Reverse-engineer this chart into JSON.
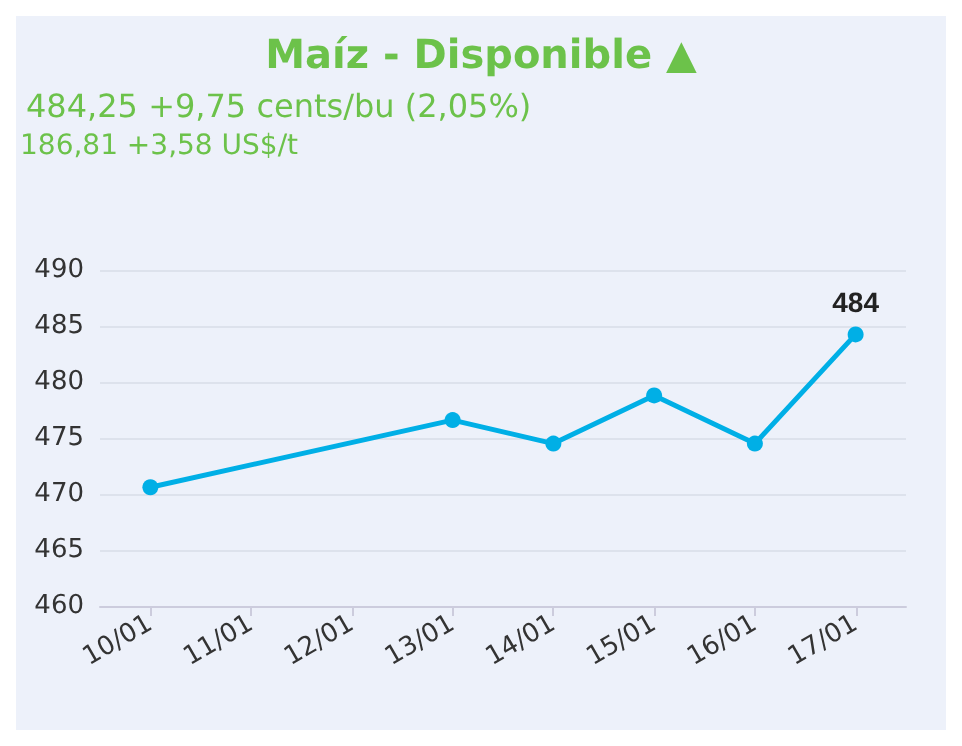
{
  "chart_data": {
    "type": "line",
    "title": "Maíz - Disponible ▲",
    "subtitle": "484,25 +9,75 cents/bu (2,05%)",
    "annotations": [
      "186,81 +3,58 US$/t"
    ],
    "categories": [
      "10/01",
      "11/01",
      "12/01",
      "13/01",
      "14/01",
      "15/01",
      "16/01",
      "17/01"
    ],
    "series": [
      {
        "color": "#00afe6",
        "values": [
          470.6,
          null,
          null,
          476.6,
          474.5,
          478.8,
          474.5,
          484.25
        ],
        "value_labels": [
          null,
          null,
          null,
          null,
          null,
          null,
          null,
          "484"
        ]
      }
    ],
    "ylim": [
      460,
      490
    ],
    "yticks": [
      460,
      465,
      470,
      475,
      480,
      485,
      490
    ],
    "grid": "y",
    "marker": "circle",
    "line_style": "solid"
  }
}
